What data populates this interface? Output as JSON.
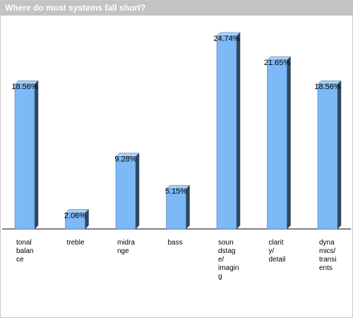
{
  "chart_data": {
    "type": "bar",
    "title": "Where do most systems fall short?",
    "xlabel": "",
    "ylabel": "",
    "ylim": [
      0,
      27
    ],
    "grid": false,
    "legend": "none",
    "categories": [
      "tonal balance",
      "treble",
      "midrange",
      "bass",
      "soundstage/ imaging",
      "clarity/ detail",
      "dynamics/ transients"
    ],
    "category_label_lines": [
      [
        "tonal",
        "balan",
        "ce"
      ],
      [
        "treble"
      ],
      [
        "midra",
        "nge"
      ],
      [
        "bass"
      ],
      [
        "soun",
        "dstag",
        "e/",
        "imagin",
        "g"
      ],
      [
        "clarit",
        "y/",
        "detail"
      ],
      [
        "dyna",
        "mics/",
        "transi",
        "ents"
      ]
    ],
    "values": [
      18.56,
      2.06,
      9.28,
      5.15,
      24.74,
      21.65,
      18.56
    ],
    "data_labels": [
      "18.56%",
      "2.06%",
      "9.28%",
      "5.15%",
      "24.74%",
      "21.65%",
      "18.56%"
    ],
    "colors": {
      "bar_front": "#7db8f7",
      "bar_top": "#a9cff8",
      "bar_side": "#2f4860",
      "bar_outline": "#4a6d92",
      "baseline": "#000000",
      "title_bg": "#c3c3c3",
      "title_text": "#ffffff"
    }
  }
}
